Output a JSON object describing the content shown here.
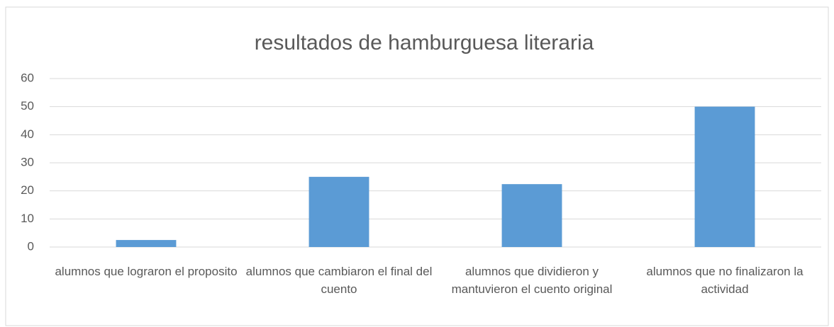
{
  "chart_data": {
    "type": "bar",
    "title": "resultados de hamburguesa literaria",
    "categories": [
      "alumnos que lograron el proposito",
      "alumnos que cambiaron el final del cuento",
      "alumnos que dividieron y mantuvieron el cuento original",
      "alumnos que no finalizaron la actividad"
    ],
    "values": [
      2.5,
      25,
      22.4,
      50
    ],
    "color": "#5b9bd5",
    "ylim": [
      0,
      60
    ],
    "yticks": [
      0,
      10,
      20,
      30,
      40,
      50,
      60
    ],
    "grid": true
  }
}
